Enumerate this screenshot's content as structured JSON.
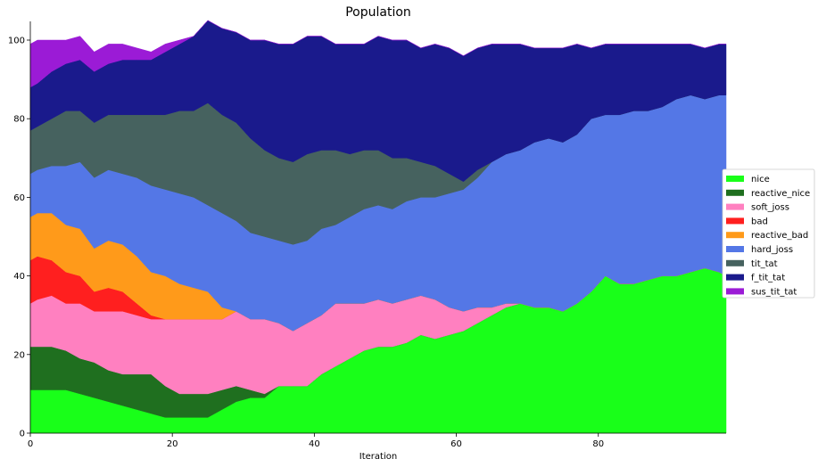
{
  "chart_data": {
    "type": "area",
    "stacked": true,
    "title": "Population",
    "xlabel": "Iteration",
    "ylabel": "",
    "xlim": [
      0,
      98
    ],
    "ylim": [
      0,
      100
    ],
    "x_ticks": [
      0,
      20,
      40,
      60,
      80
    ],
    "y_ticks": [
      0,
      20,
      40,
      60,
      80,
      100
    ],
    "grid": false,
    "legend_position": "right",
    "anchor_x": [
      0,
      1,
      3,
      5,
      7,
      9,
      11,
      13,
      15,
      17,
      19,
      21,
      23,
      25,
      27,
      29,
      31,
      33,
      35,
      37,
      39,
      41,
      43,
      45,
      47,
      49,
      51,
      53,
      55,
      57,
      59,
      61,
      63,
      65,
      67,
      69,
      71,
      73,
      75,
      77,
      79,
      81,
      83,
      85,
      87,
      89,
      91,
      93,
      95,
      97,
      98
    ],
    "series": [
      {
        "name": "nice",
        "color": "#19ff19",
        "anchors": [
          11,
          11,
          11,
          11,
          10,
          9,
          8,
          7,
          6,
          5,
          4,
          4,
          4,
          4,
          6,
          8,
          9,
          9,
          12,
          12,
          12,
          15,
          17,
          19,
          21,
          22,
          22,
          23,
          25,
          24,
          25,
          26,
          28,
          30,
          32,
          33,
          32,
          32,
          31,
          33,
          36,
          40,
          38,
          38,
          39,
          40,
          40,
          41,
          42,
          41,
          40
        ]
      },
      {
        "name": "reactive_nice",
        "color": "#1f6f1f",
        "anchors": [
          11,
          11,
          11,
          10,
          9,
          9,
          8,
          8,
          9,
          10,
          8,
          6,
          6,
          6,
          5,
          4,
          2,
          1,
          0,
          0,
          0,
          0,
          0,
          0,
          0,
          0,
          0,
          0,
          0,
          0,
          0,
          0,
          0,
          0,
          0,
          0,
          0,
          0,
          0,
          0,
          0,
          0,
          0,
          0,
          0,
          0,
          0,
          0,
          0,
          0,
          0
        ]
      },
      {
        "name": "soft_joss",
        "color": "#ff80c0",
        "anchors": [
          11,
          12,
          13,
          12,
          14,
          13,
          15,
          16,
          15,
          14,
          17,
          19,
          19,
          19,
          18,
          19,
          18,
          19,
          16,
          14,
          16,
          15,
          16,
          14,
          12,
          12,
          11,
          11,
          10,
          10,
          7,
          5,
          4,
          2,
          1,
          0,
          0,
          0,
          0,
          0,
          0,
          0,
          0,
          0,
          0,
          0,
          0,
          0,
          0,
          0,
          0
        ]
      },
      {
        "name": "bad",
        "color": "#ff1f1f",
        "anchors": [
          11,
          11,
          9,
          8,
          7,
          5,
          6,
          5,
          3,
          1,
          0,
          0,
          0,
          0,
          0,
          0,
          0,
          0,
          0,
          0,
          0,
          0,
          0,
          0,
          0,
          0,
          0,
          0,
          0,
          0,
          0,
          0,
          0,
          0,
          0,
          0,
          0,
          0,
          0,
          0,
          0,
          0,
          0,
          0,
          0,
          0,
          0,
          0,
          0,
          0,
          0
        ]
      },
      {
        "name": "reactive_bad",
        "color": "#ff9a1a",
        "anchors": [
          11,
          11,
          12,
          12,
          12,
          11,
          12,
          12,
          12,
          11,
          11,
          9,
          8,
          7,
          3,
          0,
          0,
          0,
          0,
          0,
          0,
          0,
          0,
          0,
          0,
          0,
          0,
          0,
          0,
          0,
          0,
          0,
          0,
          0,
          0,
          0,
          0,
          0,
          0,
          0,
          0,
          0,
          0,
          0,
          0,
          0,
          0,
          0,
          0,
          0,
          0
        ]
      },
      {
        "name": "hard_joss",
        "color": "#5477e6",
        "anchors": [
          11,
          11,
          12,
          15,
          17,
          18,
          18,
          18,
          20,
          22,
          22,
          23,
          23,
          22,
          24,
          23,
          22,
          21,
          21,
          22,
          21,
          22,
          20,
          22,
          24,
          24,
          24,
          25,
          25,
          26,
          29,
          31,
          33,
          37,
          38,
          39,
          42,
          43,
          43,
          43,
          44,
          41,
          43,
          44,
          43,
          43,
          45,
          45,
          43,
          45,
          46
        ]
      },
      {
        "name": "tit_tat",
        "color": "#46625f",
        "anchors": [
          11,
          11,
          12,
          14,
          13,
          14,
          14,
          15,
          16,
          18,
          19,
          21,
          22,
          26,
          25,
          25,
          24,
          22,
          21,
          21,
          22,
          20,
          19,
          16,
          15,
          14,
          13,
          11,
          9,
          8,
          5,
          2,
          2,
          0,
          0,
          0,
          0,
          0,
          0,
          0,
          0,
          0,
          0,
          0,
          0,
          0,
          0,
          0,
          0,
          0,
          0
        ]
      },
      {
        "name": "f_tit_tat",
        "color": "#1a1a8c",
        "anchors": [
          11,
          11,
          12,
          12,
          13,
          13,
          13,
          14,
          14,
          14,
          16,
          17,
          19,
          21,
          22,
          23,
          25,
          28,
          29,
          30,
          30,
          29,
          27,
          28,
          27,
          29,
          30,
          30,
          29,
          31,
          32,
          32,
          31,
          30,
          28,
          27,
          24,
          23,
          24,
          23,
          18,
          18,
          18,
          17,
          17,
          16,
          14,
          13,
          13,
          13,
          13
        ]
      },
      {
        "name": "sus_tit_tat",
        "color": "#9b1bd6",
        "anchors": [
          11,
          11,
          8,
          6,
          6,
          5,
          5,
          4,
          3,
          2,
          2,
          1,
          0,
          0,
          0,
          0,
          0,
          0,
          0,
          0,
          0,
          0,
          0,
          0,
          0,
          0,
          0,
          0,
          0,
          0,
          0,
          0,
          0,
          0,
          0,
          0,
          0,
          0,
          0,
          0,
          0,
          0,
          0,
          0,
          0,
          0,
          0,
          0,
          0,
          0,
          0
        ]
      }
    ]
  }
}
